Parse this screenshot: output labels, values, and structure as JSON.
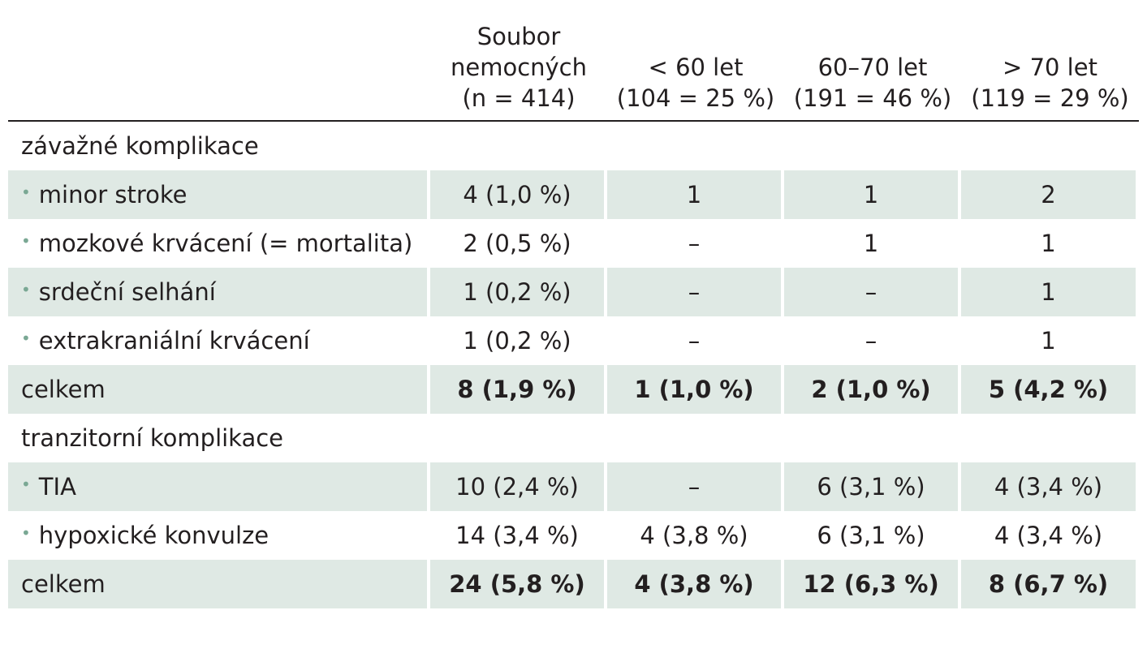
{
  "header": {
    "col_total": [
      "Soubor",
      "nemocných",
      "(n = 414)"
    ],
    "col_lt60": [
      "< 60 let",
      "(104 = 25 %)"
    ],
    "col_6070": [
      "60–70 let",
      "(191 = 46 %)"
    ],
    "col_gt70": [
      "> 70 let",
      "(119 = 29 %)"
    ]
  },
  "bullet": "•",
  "rows": [
    {
      "label": "závažné komplikace",
      "values": [
        "",
        "",
        "",
        ""
      ]
    },
    {
      "label": "minor stroke",
      "values": [
        "4 (1,0 %)",
        "1",
        "1",
        "2"
      ]
    },
    {
      "label": "mozkové krvácení (= mortalita)",
      "values": [
        "2 (0,5 %)",
        "–",
        "1",
        "1"
      ]
    },
    {
      "label": "srdeční selhání",
      "values": [
        "1 (0,2 %)",
        "–",
        "–",
        "1"
      ]
    },
    {
      "label": "extrakraniální krvácení",
      "values": [
        "1 (0,2 %)",
        "–",
        "–",
        "1"
      ]
    },
    {
      "label": "celkem",
      "values": [
        "8 (1,9 %)",
        "1 (1,0 %)",
        "2 (1,0 %)",
        "5 (4,2 %)"
      ]
    },
    {
      "label": "tranzitorní komplikace",
      "values": [
        "",
        "",
        "",
        ""
      ]
    },
    {
      "label": "TIA",
      "values": [
        "10 (2,4 %)",
        "–",
        "6 (3,1 %)",
        "4 (3,4 %)"
      ]
    },
    {
      "label": "hypoxické konvulze",
      "values": [
        "14 (3,4 %)",
        "4 (3,8 %)",
        "6 (3,1 %)",
        "4 (3,4 %)"
      ]
    },
    {
      "label": "celkem",
      "values": [
        "24 (5,8 %)",
        "4 (3,8 %)",
        "12 (6,3 %)",
        "8 (6,7 %)"
      ]
    }
  ]
}
